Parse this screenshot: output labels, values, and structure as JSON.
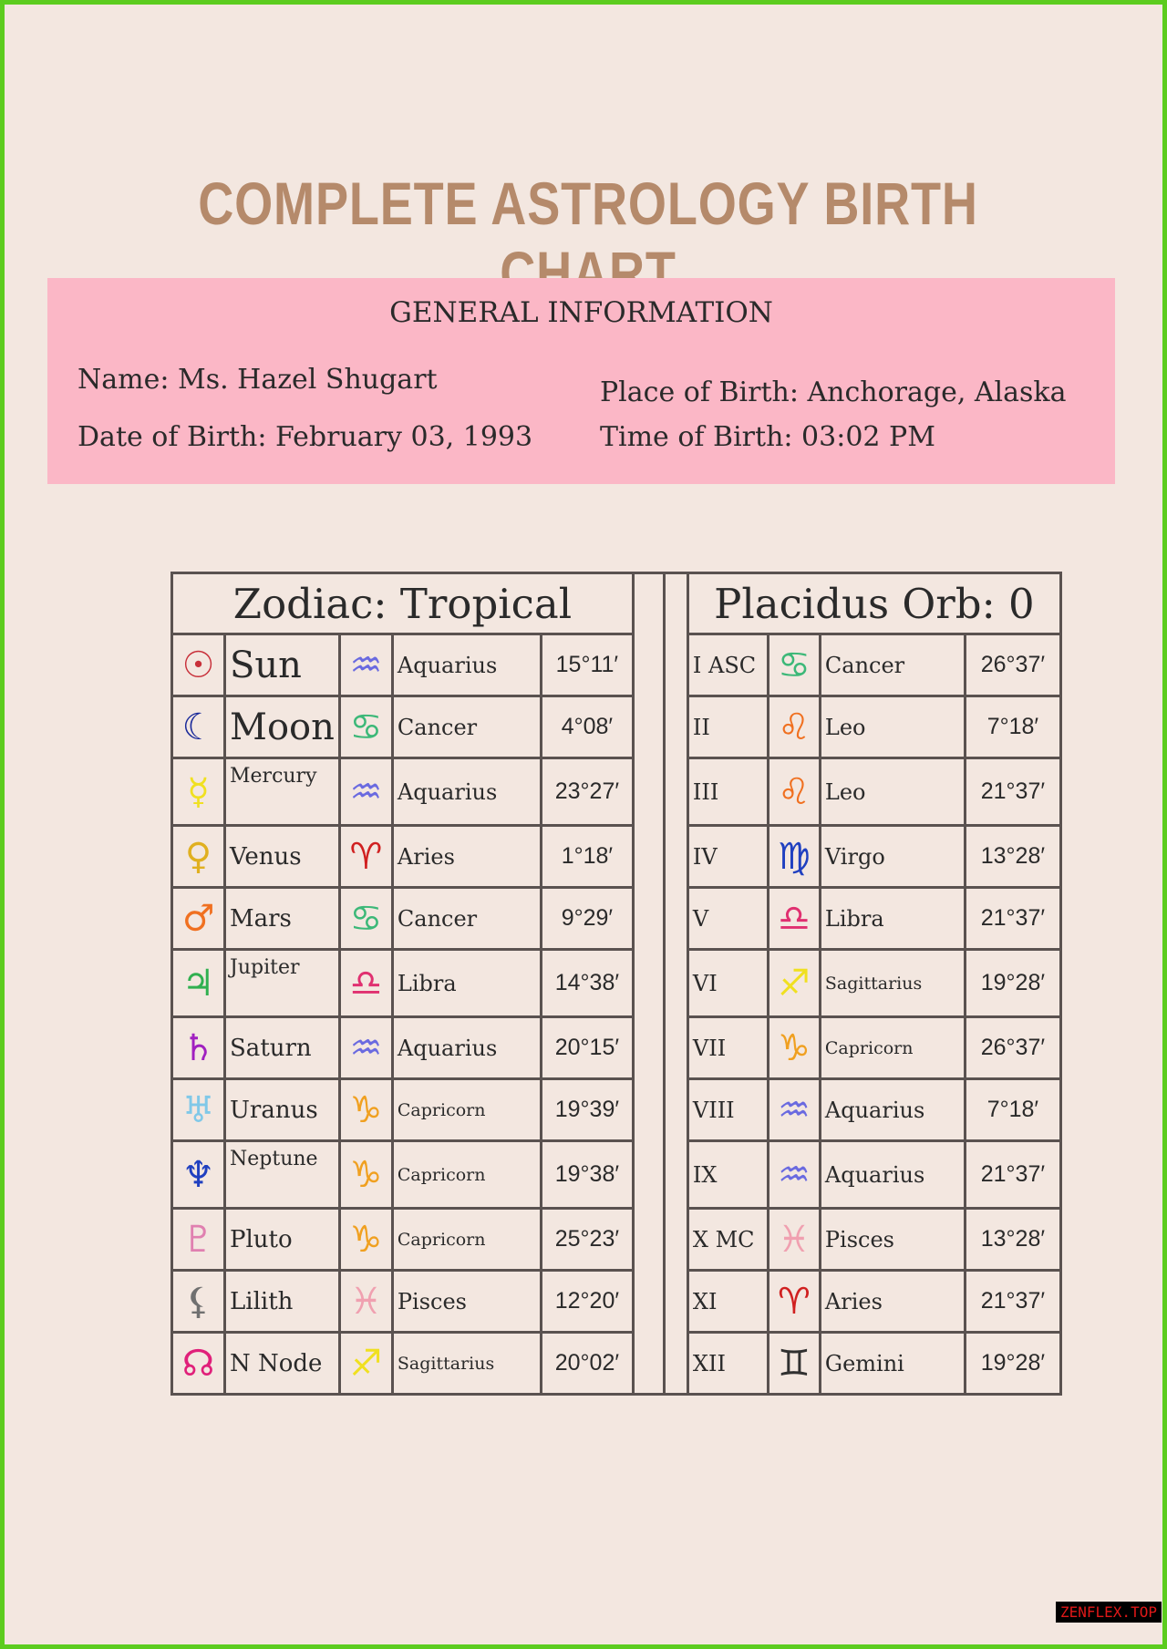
{
  "title": "COMPLETE ASTROLOGY BIRTH CHART",
  "general": {
    "heading": "GENERAL INFORMATION",
    "name": "Name: Ms. Hazel Shugart",
    "dob": "Date of Birth: February 03, 1993",
    "pob": "Place of Birth: Anchorage, Alaska",
    "tob": "Time of Birth: 03:02 PM"
  },
  "table": {
    "left_header": "Zodiac: Tropical",
    "right_header": "Placidus Orb: 0",
    "planets": [
      {
        "glyph": "☉",
        "color": "#c8303a",
        "name": "Sun",
        "sign_glyph": "♒",
        "sign_color": "#6a6ae0",
        "sign": "Aquarius",
        "deg": "15°11′"
      },
      {
        "glyph": "☾",
        "color": "#1a2a9a",
        "name": "Moon",
        "sign_glyph": "♋",
        "sign_color": "#3cb878",
        "sign": "Cancer",
        "deg": "4°08′"
      },
      {
        "glyph": "☿",
        "color": "#f0e020",
        "name": "Mercury",
        "sign_glyph": "♒",
        "sign_color": "#6a6ae0",
        "sign": "Aquarius",
        "deg": "23°27′"
      },
      {
        "glyph": "♀",
        "color": "#e0b020",
        "name": "Venus",
        "sign_glyph": "♈",
        "sign_color": "#d02020",
        "sign": "Aries",
        "deg": "1°18′"
      },
      {
        "glyph": "♂",
        "color": "#f07020",
        "name": "Mars",
        "sign_glyph": "♋",
        "sign_color": "#3cb878",
        "sign": "Cancer",
        "deg": "9°29′"
      },
      {
        "glyph": "♃",
        "color": "#30b050",
        "name": "Jupiter",
        "sign_glyph": "♎",
        "sign_color": "#e03070",
        "sign": "Libra",
        "deg": "14°38′"
      },
      {
        "glyph": "♄",
        "color": "#a020c0",
        "name": "Saturn",
        "sign_glyph": "♒",
        "sign_color": "#6a6ae0",
        "sign": "Aquarius",
        "deg": "20°15′"
      },
      {
        "glyph": "♅",
        "color": "#80c8e8",
        "name": "Uranus",
        "sign_glyph": "♑",
        "sign_color": "#f0a020",
        "sign": "Capricorn",
        "deg": "19°39′"
      },
      {
        "glyph": "♆",
        "color": "#2040c0",
        "name": "Neptune",
        "sign_glyph": "♑",
        "sign_color": "#f0a020",
        "sign": "Capricorn",
        "deg": "19°38′"
      },
      {
        "glyph": "♇",
        "color": "#e080b0",
        "name": "Pluto",
        "sign_glyph": "♑",
        "sign_color": "#f0a020",
        "sign": "Capricorn",
        "deg": "25°23′"
      },
      {
        "glyph": "⚸",
        "color": "#707070",
        "name": "Lilith",
        "sign_glyph": "♓",
        "sign_color": "#f0a0b0",
        "sign": "Pisces",
        "deg": "12°20′"
      },
      {
        "glyph": "☊",
        "color": "#e0207a",
        "name": "N Node",
        "sign_glyph": "♐",
        "sign_color": "#f0e020",
        "sign": "Sagittarius",
        "deg": "20°02′"
      }
    ],
    "houses": [
      {
        "house": "I ASC",
        "sign_glyph": "♋",
        "sign_color": "#3cb878",
        "sign": "Cancer",
        "deg": "26°37′"
      },
      {
        "house": "II",
        "sign_glyph": "♌",
        "sign_color": "#f07020",
        "sign": "Leo",
        "deg": "7°18′"
      },
      {
        "house": "III",
        "sign_glyph": "♌",
        "sign_color": "#f07020",
        "sign": "Leo",
        "deg": "21°37′"
      },
      {
        "house": "IV",
        "sign_glyph": "♍",
        "sign_color": "#2040c0",
        "sign": "Virgo",
        "deg": "13°28′"
      },
      {
        "house": "V",
        "sign_glyph": "♎",
        "sign_color": "#e03070",
        "sign": "Libra",
        "deg": "21°37′"
      },
      {
        "house": "VI",
        "sign_glyph": "♐",
        "sign_color": "#f0e020",
        "sign": "Sagittarius",
        "deg": "19°28′"
      },
      {
        "house": "VII",
        "sign_glyph": "♑",
        "sign_color": "#f0a020",
        "sign": "Capricorn",
        "deg": "26°37′"
      },
      {
        "house": "VIII",
        "sign_glyph": "♒",
        "sign_color": "#6a6ae0",
        "sign": "Aquarius",
        "deg": "7°18′"
      },
      {
        "house": "IX",
        "sign_glyph": "♒",
        "sign_color": "#6a6ae0",
        "sign": "Aquarius",
        "deg": "21°37′"
      },
      {
        "house": "X MC",
        "sign_glyph": "♓",
        "sign_color": "#f0a0b0",
        "sign": "Pisces",
        "deg": "13°28′"
      },
      {
        "house": "XI",
        "sign_glyph": "♈",
        "sign_color": "#d02020",
        "sign": "Aries",
        "deg": "21°37′"
      },
      {
        "house": "XII",
        "sign_glyph": "♊",
        "sign_color": "#303030",
        "sign": "Gemini",
        "deg": "19°28′"
      }
    ]
  },
  "watermark": "ZENFLEX.TOP"
}
